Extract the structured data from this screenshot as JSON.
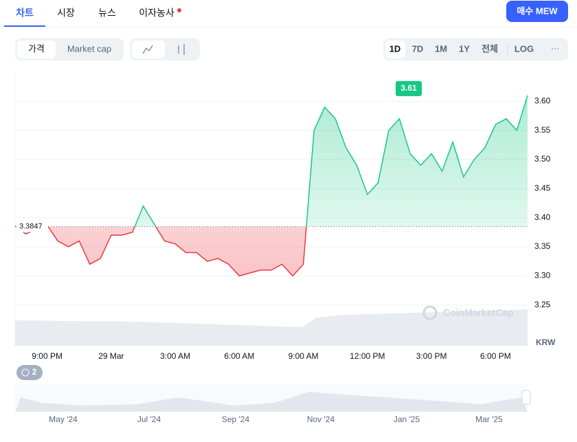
{
  "tabs": [
    "차트",
    "시장",
    "뉴스",
    "이자농사"
  ],
  "buy_button": "매수 MEW",
  "view_toggle": [
    "가격",
    "Market cap"
  ],
  "ranges": [
    "1D",
    "7D",
    "1M",
    "1Y",
    "전체",
    "LOG"
  ],
  "more": "···",
  "watermark": "CoinMarketCap",
  "currency": "KRW",
  "badge": "2",
  "navigator_labels": [
    "May '24",
    "Jul '24",
    "Sep '24",
    "Nov '24",
    "Jan '25",
    "Mar '25"
  ],
  "chart_data": {
    "type": "line",
    "categories": [
      null,
      null,
      null,
      "9:00 PM",
      null,
      null,
      null,
      null,
      null,
      "29 Mar",
      null,
      null,
      null,
      null,
      null,
      "3:00 AM",
      null,
      null,
      null,
      null,
      null,
      "6:00 AM",
      null,
      null,
      null,
      null,
      null,
      "9:00 AM",
      null,
      null,
      null,
      null,
      null,
      "12:00 PM",
      null,
      null,
      null,
      null,
      null,
      "3:00 PM",
      null,
      null,
      null,
      null,
      null,
      "6:00 PM",
      null,
      null,
      null
    ],
    "values": [
      3.386,
      3.372,
      3.38,
      3.387,
      3.36,
      3.35,
      3.36,
      3.32,
      3.33,
      3.37,
      3.37,
      3.375,
      3.42,
      3.39,
      3.36,
      3.355,
      3.34,
      3.34,
      3.325,
      3.33,
      3.32,
      3.3,
      3.305,
      3.31,
      3.31,
      3.32,
      3.3,
      3.32,
      3.55,
      3.59,
      3.57,
      3.52,
      3.49,
      3.44,
      3.46,
      3.55,
      3.57,
      3.51,
      3.49,
      3.51,
      3.48,
      3.53,
      3.47,
      3.5,
      3.52,
      3.56,
      3.57,
      3.55,
      3.61
    ],
    "reference": {
      "value": 3.3847,
      "label": "3.3847"
    },
    "peak_label": {
      "value": 3.61,
      "label": "3.61"
    },
    "up_color": "#16c784",
    "down_color": "#ea3943",
    "ylim": [
      3.18,
      3.65
    ],
    "yticks": [
      3.25,
      {
        "value": 3.3,
        "label": "3.30"
      },
      3.35,
      {
        "value": 3.4,
        "label": "3.40"
      },
      3.45,
      {
        "value": 3.5,
        "label": "3.50"
      },
      3.55,
      {
        "value": 3.6,
        "label": "3.60"
      }
    ],
    "grid": true
  }
}
